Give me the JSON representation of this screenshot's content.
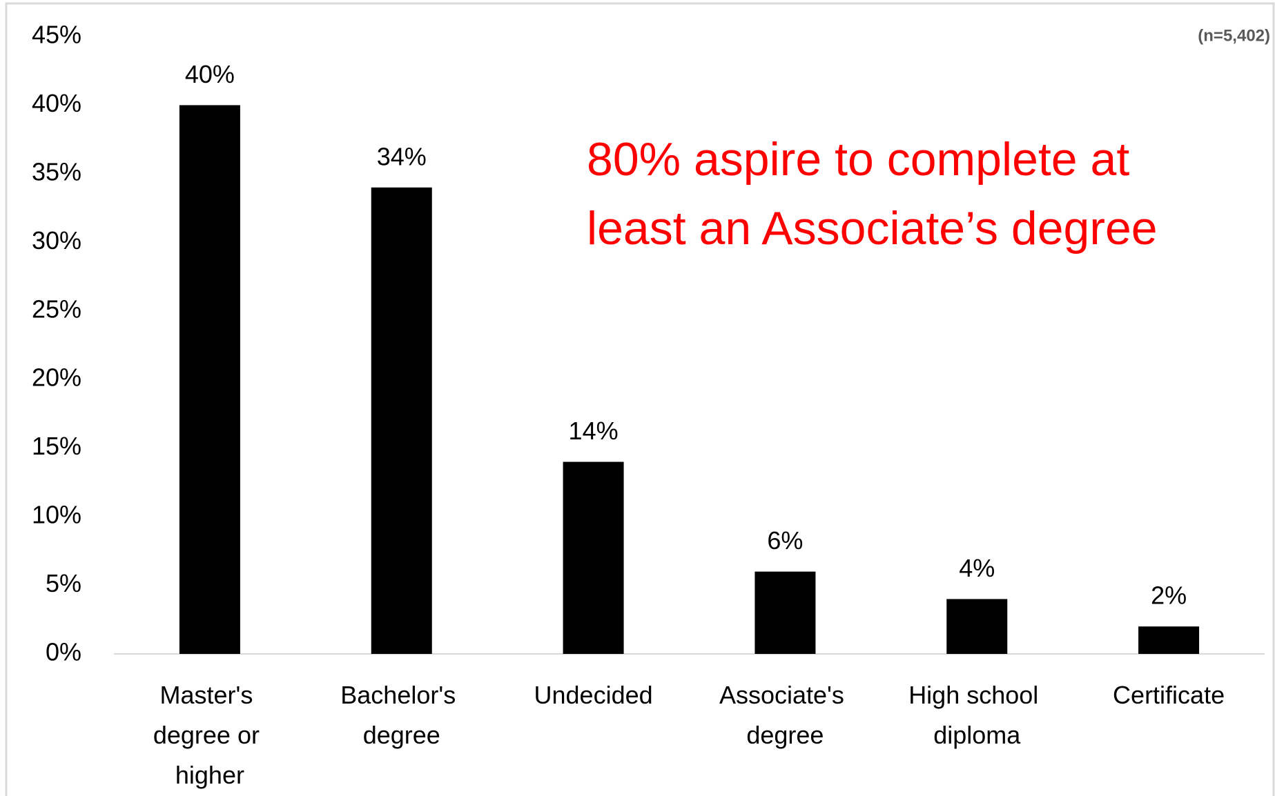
{
  "chart_data": {
    "type": "bar",
    "note": "(n=5,402)",
    "annotation": [
      "80% aspire to complete at",
      "least an Associate’s degree"
    ],
    "categories": [
      "Master's degree or higher",
      "Bachelor's degree",
      "Undecided",
      "Associate's degree",
      "High school diploma",
      "Certificate"
    ],
    "values": [
      40,
      34,
      14,
      6,
      4,
      2
    ],
    "value_labels": [
      "40%",
      "34%",
      "14%",
      "6%",
      "4%",
      "2%"
    ],
    "color": "#000000",
    "ylim": [
      0,
      45
    ],
    "yticks": [
      {
        "value": 0,
        "label": "0%"
      },
      {
        "value": 5,
        "label": "5%"
      },
      {
        "value": 10,
        "label": "10%"
      },
      {
        "value": 15,
        "label": "15%"
      },
      {
        "value": 20,
        "label": "20%"
      },
      {
        "value": 25,
        "label": "25%"
      },
      {
        "value": 30,
        "label": "30%"
      },
      {
        "value": 35,
        "label": "35%"
      },
      {
        "value": 40,
        "label": "40%"
      },
      {
        "value": 45,
        "label": "45%"
      }
    ],
    "grid": false
  }
}
